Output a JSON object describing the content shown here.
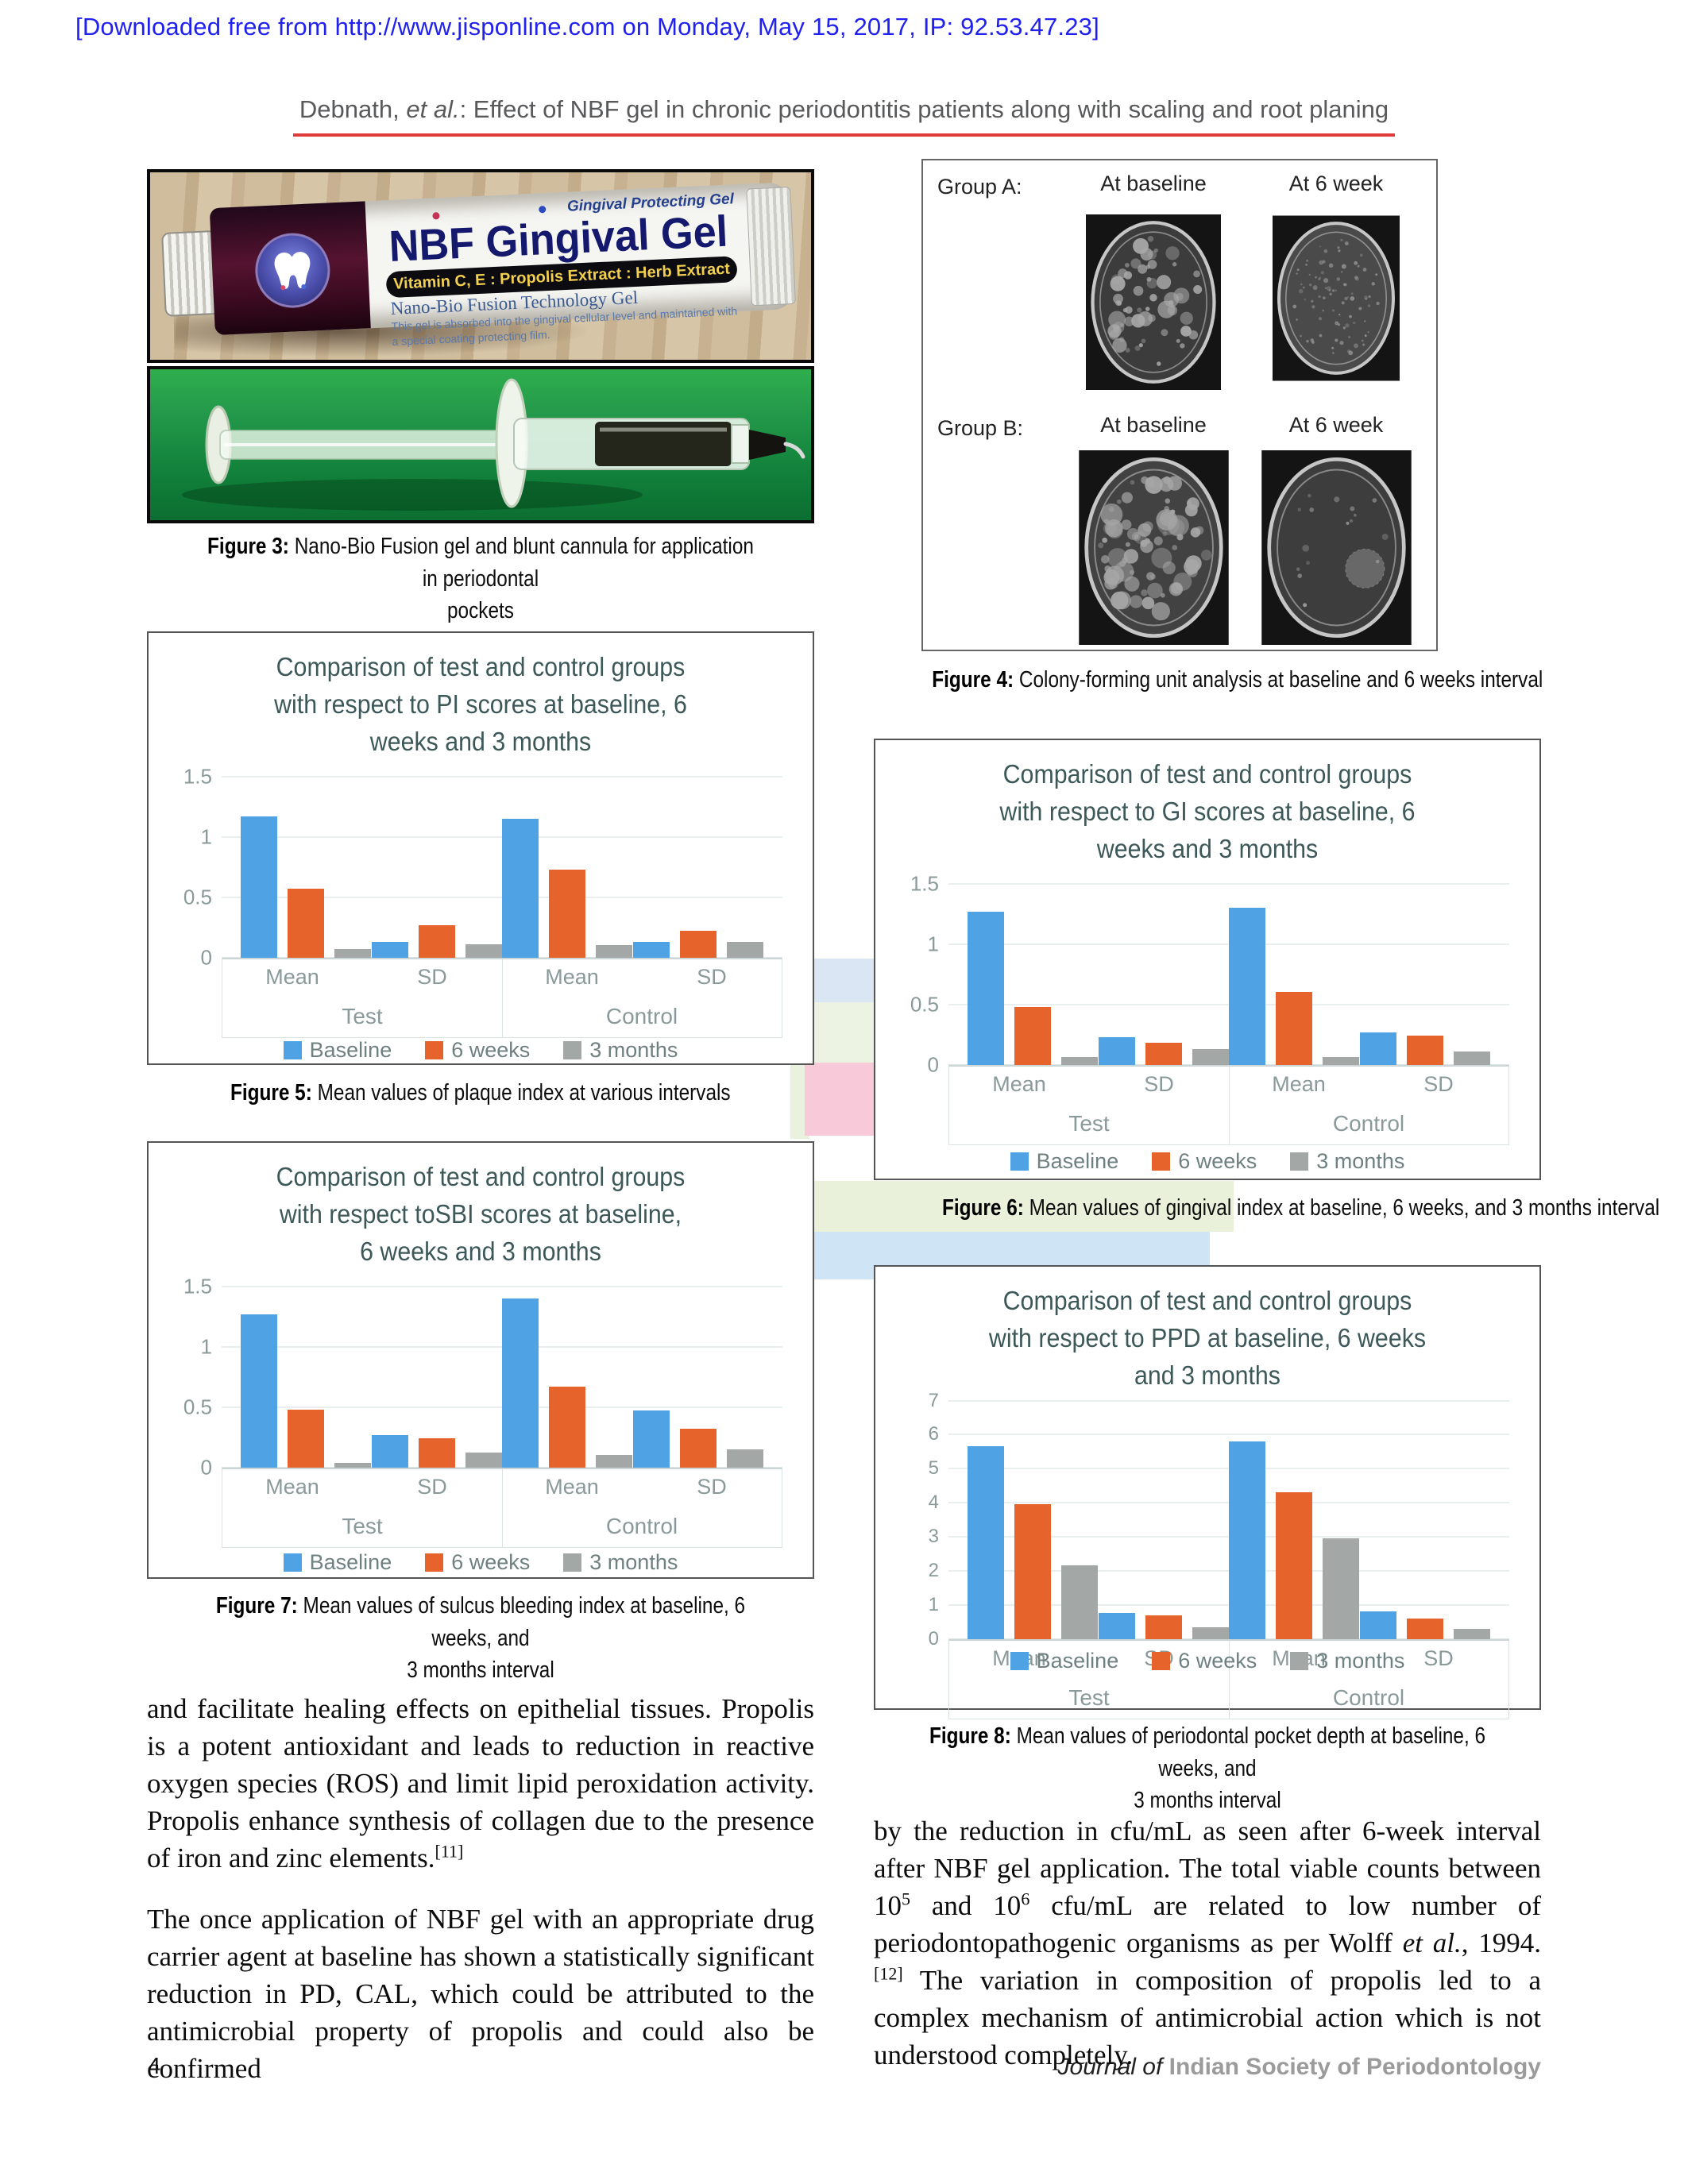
{
  "page": {
    "download_banner": "[Downloaded free from http://www.jisponline.com on Monday, May 15, 2017, IP: 92.53.47.23]",
    "head_pre": "Debnath, ",
    "head_it": "et al.",
    "head_post": ": Effect of NBF gel in chronic periodontitis patients along with scaling and root planing",
    "footer": {
      "page_number": "4",
      "journal_italic": "Journal of ",
      "journal_name": "Indian Society of Periodontology"
    }
  },
  "colors": {
    "banner_blue": "#2121ef",
    "head_rule_red": "#e23b3b",
    "baseline_blue": "#4fa3e5",
    "six_weeks_orange": "#e7632c",
    "three_months_gray": "#a3a7a6",
    "chart_title": "#3d5858"
  },
  "figure3": {
    "tube": {
      "top_right": "Gingival Protecting Gel",
      "brand": "NBF Gingival Gel",
      "band": "Vitamin C, E : Propolis Extract : Herb Extract",
      "line1": "Nano-Bio Fusion Technology Gel",
      "fine1": "This gel is absorbed into the gingival cellular level and maintained with",
      "fine2": "a special coating protecting film."
    }
  },
  "figure4": {
    "rows": [
      {
        "group": "Group A:",
        "cols": [
          {
            "label": "At baseline",
            "dish": {
              "count": 60,
              "rmin": 3,
              "rmax": 13,
              "fill": "#3c3c3c",
              "dot": "#a9a9a9",
              "seed": 11
            }
          },
          {
            "label": "At 6 week",
            "dish": {
              "count": 90,
              "rmin": 1.5,
              "rmax": 4,
              "fill": "#4a4a4a",
              "dot": "#919191",
              "seed": 22
            }
          }
        ]
      },
      {
        "group": "Group B:",
        "cols": [
          {
            "label": "At baseline",
            "dish": {
              "count": 80,
              "rmin": 3,
              "rmax": 15,
              "fill": "#424242",
              "dot": "#a6a6a6",
              "seed": 33
            }
          },
          {
            "label": "At 6 week",
            "dish": {
              "count": 16,
              "rmin": 2,
              "rmax": 5,
              "fill": "#3d3d3d",
              "dot": "#9c9c9c",
              "seed": 44,
              "blob": {
                "x": 138,
                "y": 158,
                "r": 26
              }
            }
          }
        ]
      }
    ]
  },
  "captions": {
    "f3": {
      "label": "Figure 3:",
      "text": " Nano-Bio Fusion gel and blunt cannula for application in periodontal\npockets"
    },
    "f4": {
      "label": "Figure 4:",
      "text": " Colony-forming unit analysis at baseline and 6 weeks interval"
    },
    "f5": {
      "label": "Figure 5:",
      "text": " Mean values of plaque index at various intervals"
    },
    "f6": {
      "label": "Figure 6:",
      "text": " Mean values of gingival index at baseline, 6 weeks, and 3 months interval"
    },
    "f7": {
      "label": "Figure 7:",
      "text": " Mean values of sulcus bleeding index at baseline, 6 weeks, and\n3 months interval"
    },
    "f8": {
      "label": "Figure 8:",
      "text": " Mean values of periodontal pocket depth at baseline, 6 weeks, and\n3 months interval"
    }
  },
  "chart_data": [
    {
      "id": "figure5",
      "type": "bar",
      "title": "Comparison of test and control groups\nwith respect to PI scores at baseline, 6\nweeks and 3 months",
      "groups": [
        "Test",
        "Control"
      ],
      "categories": [
        "Mean",
        "SD",
        "Mean",
        "SD"
      ],
      "series": [
        {
          "name": "Baseline",
          "color": "#4fa3e5",
          "values": [
            1.17,
            0.13,
            1.15,
            0.13
          ]
        },
        {
          "name": "6 weeks",
          "color": "#e7632c",
          "values": [
            0.57,
            0.27,
            0.73,
            0.22
          ]
        },
        {
          "name": "3 months",
          "color": "#a3a7a6",
          "values": [
            0.07,
            0.11,
            0.1,
            0.13
          ]
        }
      ],
      "ylim": [
        0,
        1.5
      ],
      "ytick_step": 0.5,
      "grid": true,
      "legend_position": "bottom"
    },
    {
      "id": "figure6",
      "type": "bar",
      "title": "Comparison of test and control groups\nwith respect to GI scores at baseline, 6\nweeks and 3 months",
      "groups": [
        "Test",
        "Control"
      ],
      "categories": [
        "Mean",
        "SD",
        "Mean",
        "SD"
      ],
      "series": [
        {
          "name": "Baseline",
          "color": "#4fa3e5",
          "values": [
            1.27,
            0.23,
            1.3,
            0.27
          ]
        },
        {
          "name": "6 weeks",
          "color": "#e7632c",
          "values": [
            0.48,
            0.18,
            0.6,
            0.24
          ]
        },
        {
          "name": "3 months",
          "color": "#a3a7a6",
          "values": [
            0.06,
            0.13,
            0.06,
            0.11
          ]
        }
      ],
      "ylim": [
        0,
        1.5
      ],
      "ytick_step": 0.5,
      "grid": true,
      "legend_position": "bottom"
    },
    {
      "id": "figure7",
      "type": "bar",
      "title": "Comparison of test and control groups\nwith respect toSBI scores at baseline,\n6 weeks and 3 months",
      "groups": [
        "Test",
        "Control"
      ],
      "categories": [
        "Mean",
        "SD",
        "Mean",
        "SD"
      ],
      "series": [
        {
          "name": "Baseline",
          "color": "#4fa3e5",
          "values": [
            1.27,
            0.27,
            1.4,
            0.47
          ]
        },
        {
          "name": "6 weeks",
          "color": "#e7632c",
          "values": [
            0.48,
            0.24,
            0.67,
            0.32
          ]
        },
        {
          "name": "3 months",
          "color": "#a3a7a6",
          "values": [
            0.04,
            0.12,
            0.1,
            0.15
          ]
        }
      ],
      "ylim": [
        0,
        1.5
      ],
      "ytick_step": 0.5,
      "grid": true,
      "legend_position": "bottom"
    },
    {
      "id": "figure8",
      "type": "bar",
      "title": "Comparison of test and control groups\nwith respect to PPD at baseline, 6 weeks\nand 3 months",
      "groups": [
        "Test",
        "Control"
      ],
      "categories": [
        "Mean",
        "SD",
        "Mean",
        "SD"
      ],
      "series": [
        {
          "name": "Baseline",
          "color": "#4fa3e5",
          "values": [
            5.65,
            0.75,
            5.8,
            0.8
          ]
        },
        {
          "name": "6 weeks",
          "color": "#e7632c",
          "values": [
            3.95,
            0.68,
            4.3,
            0.6
          ]
        },
        {
          "name": "3 months",
          "color": "#a3a7a6",
          "values": [
            2.15,
            0.35,
            2.95,
            0.3
          ]
        }
      ],
      "ylim": [
        0,
        7
      ],
      "ytick_step": 1,
      "grid": true,
      "legend_position": "overlap"
    }
  ],
  "body": {
    "left_p1": "and facilitate healing effects on epithelial tissues. Propolis is a potent antioxidant and leads to reduction in reactive oxygen species (ROS) and limit lipid peroxidation activity. Propolis enhance synthesis of collagen due to the presence of iron and zinc elements.[[sup]][11][[/sup]]",
    "left_p2": "The once application of NBF gel with an appropriate drug carrier agent at baseline has shown a statistically significant reduction in PD, CAL, which could be attributed to the antimicrobial property of propolis and could also be confirmed",
    "right_p1": "by the reduction in cfu/mL as seen after 6-week interval after NBF gel application. The total viable counts between 10[[sup]]5[[/sup]] and 10[[sup]]6[[/sup]] cfu/mL are related to low number of periodontopathogenic organisms as per Wolff [[i]]et al.[[/i]], 1994.[[sup]][12][[/sup]] The variation in composition of propolis led to a complex mechanism of antimicrobial action which is not understood completely."
  }
}
